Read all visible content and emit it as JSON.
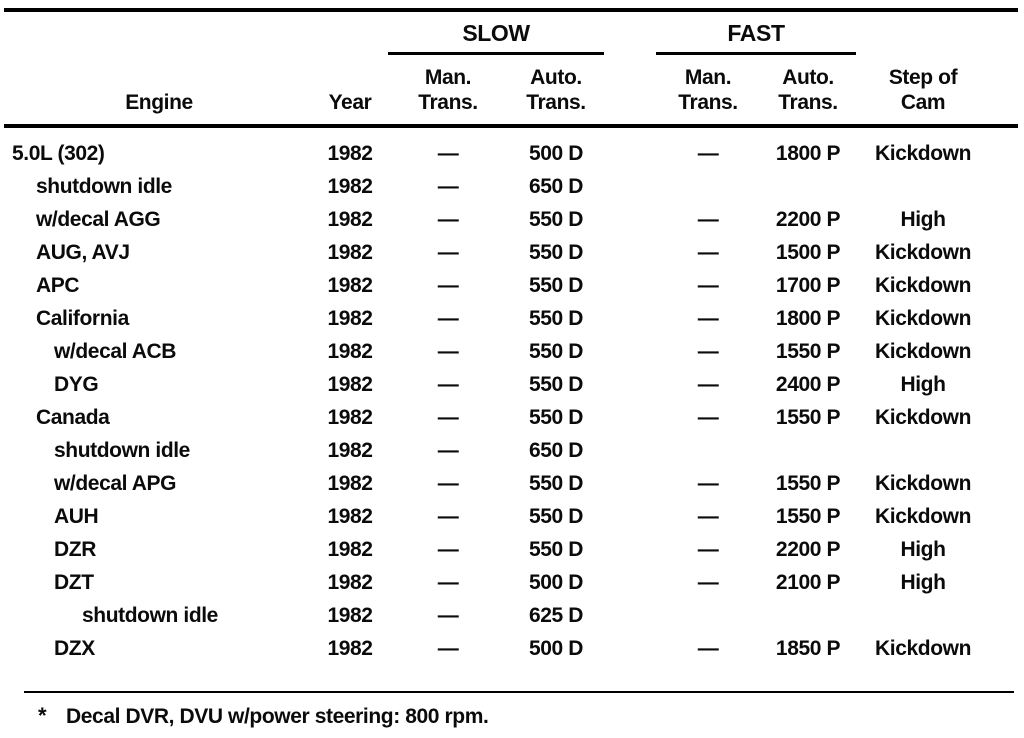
{
  "table": {
    "headers": {
      "engine": "Engine",
      "year": "Year",
      "slow_group": "SLOW",
      "fast_group": "FAST",
      "man_trans": "Man.\nTrans.",
      "auto_trans": "Auto.\nTrans.",
      "step_of_cam": "Step of\nCam"
    },
    "rows": [
      {
        "engine": "5.0L (302)",
        "indent": 0,
        "year": "1982",
        "slow_man": "—",
        "slow_auto": "500 D",
        "fast_man": "—",
        "fast_auto": "1800 P",
        "cam": "Kickdown"
      },
      {
        "engine": "shutdown idle",
        "indent": 1,
        "year": "1982",
        "slow_man": "—",
        "slow_auto": "650 D",
        "fast_man": "",
        "fast_auto": "",
        "cam": ""
      },
      {
        "engine": "w/decal AGG",
        "indent": 1,
        "year": "1982",
        "slow_man": "—",
        "slow_auto": "550 D",
        "fast_man": "—",
        "fast_auto": "2200 P",
        "cam": "High"
      },
      {
        "engine": "AUG, AVJ",
        "indent": 1,
        "year": "1982",
        "slow_man": "—",
        "slow_auto": "550 D",
        "fast_man": "—",
        "fast_auto": "1500 P",
        "cam": "Kickdown"
      },
      {
        "engine": "APC",
        "indent": 1,
        "year": "1982",
        "slow_man": "—",
        "slow_auto": "550 D",
        "fast_man": "—",
        "fast_auto": "1700 P",
        "cam": "Kickdown"
      },
      {
        "engine": "California",
        "indent": 1,
        "year": "1982",
        "slow_man": "—",
        "slow_auto": "550 D",
        "fast_man": "—",
        "fast_auto": "1800 P",
        "cam": "Kickdown"
      },
      {
        "engine": "w/decal ACB",
        "indent": 2,
        "year": "1982",
        "slow_man": "—",
        "slow_auto": "550 D",
        "fast_man": "—",
        "fast_auto": "1550 P",
        "cam": "Kickdown"
      },
      {
        "engine": "DYG",
        "indent": 2,
        "year": "1982",
        "slow_man": "—",
        "slow_auto": "550 D",
        "fast_man": "—",
        "fast_auto": "2400 P",
        "cam": "High"
      },
      {
        "engine": "Canada",
        "indent": 1,
        "year": "1982",
        "slow_man": "—",
        "slow_auto": "550 D",
        "fast_man": "—",
        "fast_auto": "1550 P",
        "cam": "Kickdown"
      },
      {
        "engine": "shutdown idle",
        "indent": 2,
        "year": "1982",
        "slow_man": "—",
        "slow_auto": "650 D",
        "fast_man": "",
        "fast_auto": "",
        "cam": ""
      },
      {
        "engine": "w/decal APG",
        "indent": 2,
        "year": "1982",
        "slow_man": "—",
        "slow_auto": "550 D",
        "fast_man": "—",
        "fast_auto": "1550 P",
        "cam": "Kickdown"
      },
      {
        "engine": "AUH",
        "indent": 2,
        "year": "1982",
        "slow_man": "—",
        "slow_auto": "550 D",
        "fast_man": "—",
        "fast_auto": "1550 P",
        "cam": "Kickdown"
      },
      {
        "engine": "DZR",
        "indent": 2,
        "year": "1982",
        "slow_man": "—",
        "slow_auto": "550 D",
        "fast_man": "—",
        "fast_auto": "2200 P",
        "cam": "High"
      },
      {
        "engine": "DZT",
        "indent": 2,
        "year": "1982",
        "slow_man": "—",
        "slow_auto": "500 D",
        "fast_man": "—",
        "fast_auto": "2100 P",
        "cam": "High"
      },
      {
        "engine": "shutdown idle",
        "indent": 3,
        "year": "1982",
        "slow_man": "—",
        "slow_auto": "625 D",
        "fast_man": "",
        "fast_auto": "",
        "cam": ""
      },
      {
        "engine": "DZX",
        "indent": 2,
        "year": "1982",
        "slow_man": "—",
        "slow_auto": "500 D",
        "fast_man": "—",
        "fast_auto": "1850 P",
        "cam": "Kickdown"
      }
    ]
  },
  "footnote": {
    "marker": "*",
    "text": "Decal DVR, DVU w/power steering: 800 rpm."
  }
}
